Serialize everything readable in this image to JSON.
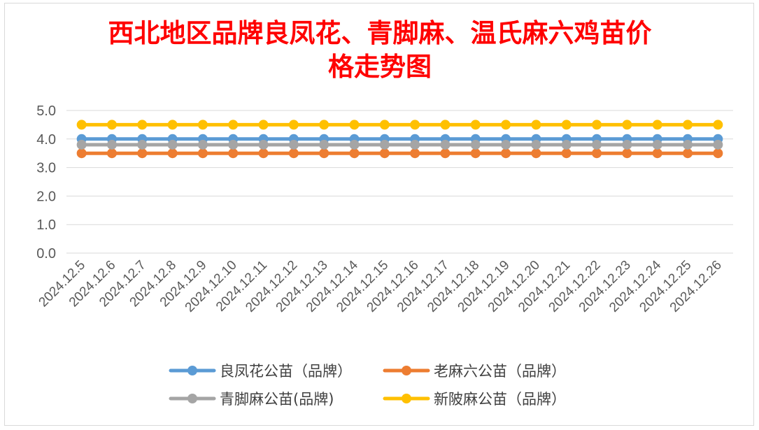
{
  "chart_data": {
    "type": "line",
    "title_lines": [
      "西北地区品牌良凤花、青脚麻、温氏麻六鸡苗价",
      "格走势图"
    ],
    "xlabel": "",
    "ylabel": "",
    "ylim": [
      0,
      5
    ],
    "y_ticks": [
      "5.0",
      "4.0",
      "3.0",
      "2.0",
      "1.0",
      "0.0"
    ],
    "categories": [
      "2024.12.5",
      "2024.12.6",
      "2024.12.7",
      "2024.12.8",
      "2024.12.9",
      "2024.12.10",
      "2024.12.11",
      "2024.12.12",
      "2024.12.13",
      "2024.12.14",
      "2024.12.15",
      "2024.12.16",
      "2024.12.17",
      "2024.12.18",
      "2024.12.19",
      "2024.12.20",
      "2024.12.21",
      "2024.12.22",
      "2024.12.23",
      "2024.12.24",
      "2024.12.25",
      "2024.12.26"
    ],
    "grid": true,
    "legend_position": "bottom",
    "series": [
      {
        "name": "良凤花公苗（品牌）",
        "color": "#5b9bd5",
        "values": [
          4.0,
          4.0,
          4.0,
          4.0,
          4.0,
          4.0,
          4.0,
          4.0,
          4.0,
          4.0,
          4.0,
          4.0,
          4.0,
          4.0,
          4.0,
          4.0,
          4.0,
          4.0,
          4.0,
          4.0,
          4.0,
          4.0
        ]
      },
      {
        "name": "老麻六公苗（品牌）",
        "color": "#ed7d31",
        "values": [
          3.5,
          3.5,
          3.5,
          3.5,
          3.5,
          3.5,
          3.5,
          3.5,
          3.5,
          3.5,
          3.5,
          3.5,
          3.5,
          3.5,
          3.5,
          3.5,
          3.5,
          3.5,
          3.5,
          3.5,
          3.5,
          3.5
        ]
      },
      {
        "name": "青脚麻公苗(品牌)",
        "color": "#a5a5a5",
        "values": [
          3.8,
          3.8,
          3.8,
          3.8,
          3.8,
          3.8,
          3.8,
          3.8,
          3.8,
          3.8,
          3.8,
          3.8,
          3.8,
          3.8,
          3.8,
          3.8,
          3.8,
          3.8,
          3.8,
          3.8,
          3.8,
          3.8
        ]
      },
      {
        "name": "新陂麻公苗（品牌）",
        "color": "#ffc000",
        "values": [
          4.5,
          4.5,
          4.5,
          4.5,
          4.5,
          4.5,
          4.5,
          4.5,
          4.5,
          4.5,
          4.5,
          4.5,
          4.5,
          4.5,
          4.5,
          4.5,
          4.5,
          4.5,
          4.5,
          4.5,
          4.5,
          4.5
        ]
      }
    ]
  }
}
